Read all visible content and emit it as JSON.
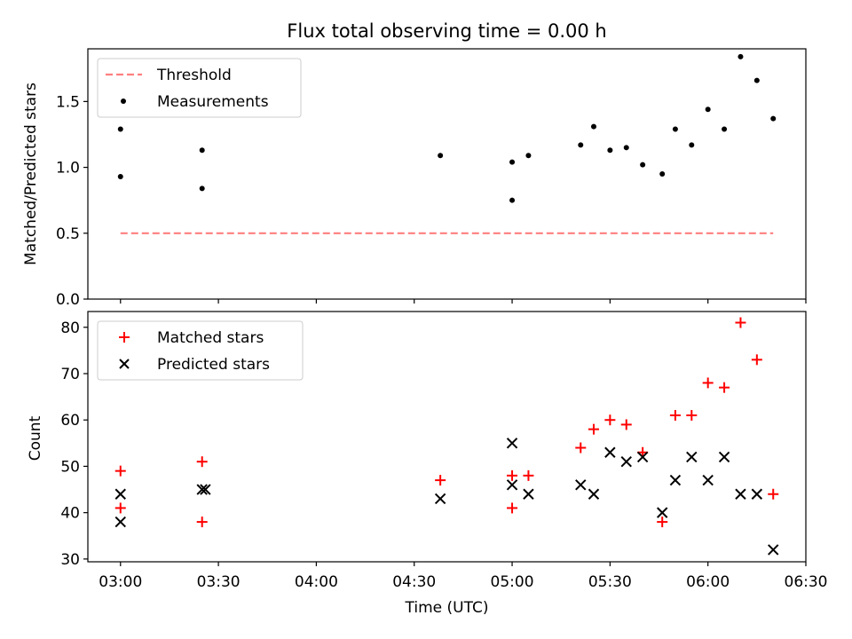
{
  "chart_data": [
    {
      "type": "scatter",
      "title": "Flux total observing time = 0.00 h",
      "xlabel": "",
      "ylabel": "Matched/Predicted stars",
      "xlim": [
        "02:50",
        "06:30"
      ],
      "ylim": [
        0.0,
        1.9
      ],
      "yticks": [
        0.0,
        0.5,
        1.0,
        1.5
      ],
      "ytick_labels": [
        "0.0",
        "0.5",
        "1.0",
        "1.5"
      ],
      "legend_position": "upper-left",
      "threshold": {
        "name": "Threshold",
        "value": 0.5,
        "x_range": [
          "03:00",
          "06:20"
        ],
        "color": "#ff7f7f",
        "style": "dashed"
      },
      "series": [
        {
          "name": "Measurements",
          "marker": "dot",
          "color": "#000000",
          "points": [
            {
              "x": "03:00",
              "y": 0.93
            },
            {
              "x": "03:00",
              "y": 1.29
            },
            {
              "x": "03:25",
              "y": 0.84
            },
            {
              "x": "03:25",
              "y": 1.13
            },
            {
              "x": "04:38",
              "y": 1.09
            },
            {
              "x": "05:00",
              "y": 0.75
            },
            {
              "x": "05:00",
              "y": 1.04
            },
            {
              "x": "05:05",
              "y": 1.09
            },
            {
              "x": "05:21",
              "y": 1.17
            },
            {
              "x": "05:25",
              "y": 1.31
            },
            {
              "x": "05:30",
              "y": 1.13
            },
            {
              "x": "05:35",
              "y": 1.15
            },
            {
              "x": "05:40",
              "y": 1.02
            },
            {
              "x": "05:46",
              "y": 0.95
            },
            {
              "x": "05:50",
              "y": 1.29
            },
            {
              "x": "05:55",
              "y": 1.17
            },
            {
              "x": "06:00",
              "y": 1.44
            },
            {
              "x": "06:05",
              "y": 1.29
            },
            {
              "x": "06:10",
              "y": 1.84
            },
            {
              "x": "06:15",
              "y": 1.66
            },
            {
              "x": "06:20",
              "y": 1.37
            }
          ]
        }
      ]
    },
    {
      "type": "scatter",
      "title": "",
      "xlabel": "Time (UTC)",
      "ylabel": "Count",
      "xlim": [
        "02:50",
        "06:30"
      ],
      "ylim": [
        29.4,
        83.4
      ],
      "yticks": [
        30,
        40,
        50,
        60,
        70,
        80
      ],
      "ytick_labels": [
        "30",
        "40",
        "50",
        "60",
        "70",
        "80"
      ],
      "xticks": [
        "03:00",
        "03:30",
        "04:00",
        "04:30",
        "05:00",
        "05:30",
        "06:00",
        "06:30"
      ],
      "xtick_labels": [
        "03:00",
        "03:30",
        "04:00",
        "04:30",
        "05:00",
        "05:30",
        "06:00",
        "06:30"
      ],
      "legend_position": "upper-left",
      "series": [
        {
          "name": "Matched stars",
          "marker": "plus",
          "color": "#ff0000",
          "points": [
            {
              "x": "03:00",
              "y": 49
            },
            {
              "x": "03:00",
              "y": 41
            },
            {
              "x": "03:25",
              "y": 51
            },
            {
              "x": "03:25",
              "y": 38
            },
            {
              "x": "04:38",
              "y": 47
            },
            {
              "x": "05:00",
              "y": 48
            },
            {
              "x": "05:00",
              "y": 41
            },
            {
              "x": "05:05",
              "y": 48
            },
            {
              "x": "05:21",
              "y": 54
            },
            {
              "x": "05:25",
              "y": 58
            },
            {
              "x": "05:30",
              "y": 60
            },
            {
              "x": "05:35",
              "y": 59
            },
            {
              "x": "05:40",
              "y": 53
            },
            {
              "x": "05:46",
              "y": 38
            },
            {
              "x": "05:50",
              "y": 61
            },
            {
              "x": "05:55",
              "y": 61
            },
            {
              "x": "06:00",
              "y": 68
            },
            {
              "x": "06:05",
              "y": 67
            },
            {
              "x": "06:10",
              "y": 81
            },
            {
              "x": "06:15",
              "y": 73
            },
            {
              "x": "06:20",
              "y": 44
            }
          ]
        },
        {
          "name": "Predicted stars",
          "marker": "x",
          "color": "#000000",
          "points": [
            {
              "x": "03:00",
              "y": 44
            },
            {
              "x": "03:00",
              "y": 38
            },
            {
              "x": "03:25",
              "y": 45
            },
            {
              "x": "03:26",
              "y": 45
            },
            {
              "x": "04:38",
              "y": 43
            },
            {
              "x": "05:00",
              "y": 55
            },
            {
              "x": "05:00",
              "y": 46
            },
            {
              "x": "05:05",
              "y": 44
            },
            {
              "x": "05:21",
              "y": 46
            },
            {
              "x": "05:25",
              "y": 44
            },
            {
              "x": "05:30",
              "y": 53
            },
            {
              "x": "05:35",
              "y": 51
            },
            {
              "x": "05:40",
              "y": 52
            },
            {
              "x": "05:46",
              "y": 40
            },
            {
              "x": "05:50",
              "y": 47
            },
            {
              "x": "05:55",
              "y": 52
            },
            {
              "x": "06:00",
              "y": 47
            },
            {
              "x": "06:05",
              "y": 52
            },
            {
              "x": "06:10",
              "y": 44
            },
            {
              "x": "06:15",
              "y": 44
            },
            {
              "x": "06:20",
              "y": 32
            }
          ]
        }
      ]
    }
  ]
}
